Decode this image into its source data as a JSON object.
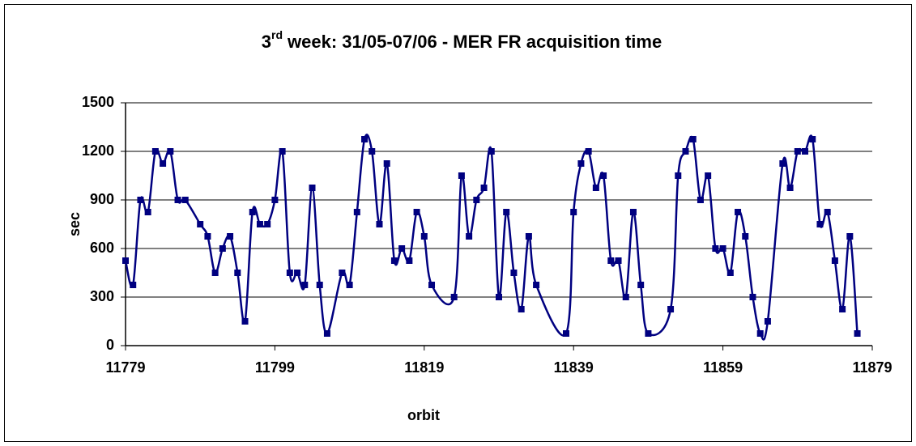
{
  "chart_data": {
    "type": "line",
    "title_number": "3",
    "title_suffix": "rd",
    "title": "week: 31/05-07/06 - MER FR acquisition time",
    "xlabel": "orbit",
    "ylabel": "sec",
    "xlim": [
      11779,
      11879
    ],
    "xticks": [
      11779,
      11799,
      11819,
      11839,
      11859,
      11879
    ],
    "ylim": [
      0,
      1500
    ],
    "yticks": [
      0,
      300,
      600,
      900,
      1200,
      1500
    ],
    "grid": true,
    "smooth": true,
    "x": [
      11779,
      11780,
      11781,
      11782,
      11783,
      11784,
      11785,
      11786,
      11787,
      11789,
      11790,
      11791,
      11792,
      11793,
      11794,
      11795,
      11796,
      11797,
      11798,
      11799,
      11800,
      11801,
      11802,
      11803,
      11804,
      11805,
      11806,
      11808,
      11809,
      11810,
      11811,
      11812,
      11813,
      11814,
      11815,
      11816,
      11817,
      11818,
      11819,
      11820,
      11823,
      11824,
      11825,
      11826,
      11827,
      11828,
      11829,
      11830,
      11831,
      11832,
      11833,
      11834,
      11838,
      11839,
      11840,
      11841,
      11842,
      11843,
      11844,
      11845,
      11846,
      11847,
      11848,
      11849,
      11852,
      11853,
      11854,
      11855,
      11856,
      11857,
      11858,
      11859,
      11860,
      11861,
      11862,
      11863,
      11864,
      11865,
      11867,
      11868,
      11869,
      11870,
      11871,
      11872,
      11873,
      11874,
      11875,
      11876,
      11877
    ],
    "series": [
      {
        "name": "acquisition time",
        "color": "#000080",
        "values": [
          525,
          375,
          900,
          825,
          1200,
          1125,
          1200,
          900,
          900,
          750,
          675,
          450,
          600,
          675,
          450,
          150,
          825,
          750,
          750,
          900,
          1200,
          450,
          450,
          375,
          975,
          375,
          75,
          450,
          375,
          825,
          1275,
          1200,
          750,
          1125,
          525,
          600,
          525,
          825,
          675,
          375,
          300,
          1050,
          675,
          900,
          975,
          1200,
          300,
          825,
          450,
          225,
          675,
          375,
          75,
          825,
          1125,
          1200,
          975,
          1050,
          525,
          525,
          300,
          825,
          375,
          75,
          225,
          1050,
          1200,
          1275,
          900,
          1050,
          600,
          600,
          450,
          825,
          675,
          300,
          75,
          150,
          1125,
          975,
          1200,
          1200,
          1275,
          750,
          825,
          525,
          225,
          675,
          75
        ]
      }
    ]
  }
}
